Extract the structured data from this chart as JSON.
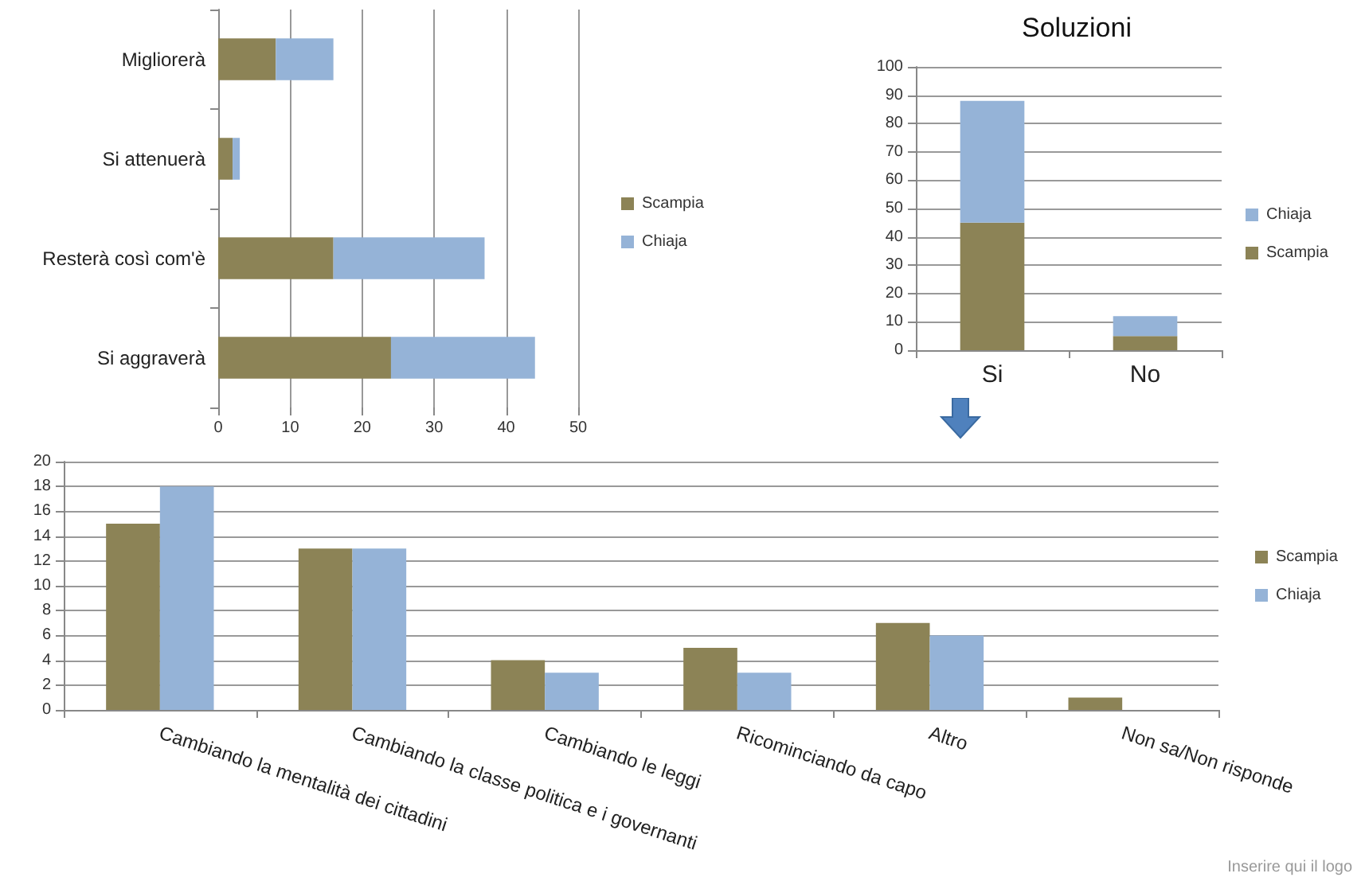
{
  "chart_data": [
    {
      "type": "bar",
      "orientation": "horizontal",
      "stacked": true,
      "categories": [
        "Migliorerà",
        "Si attenuerà",
        "Resterà così com'è",
        "Si aggraverà"
      ],
      "xlim": [
        0,
        50
      ],
      "xticks": [
        0,
        10,
        20,
        30,
        40,
        50
      ],
      "grid": "x",
      "legend": "right",
      "series": [
        {
          "name": "Scampia",
          "color": "#8c8356",
          "values": [
            8,
            2,
            16,
            24
          ]
        },
        {
          "name": "Chiaja",
          "color": "#95b3d7",
          "values": [
            8,
            1,
            21,
            20
          ]
        }
      ]
    },
    {
      "type": "bar",
      "stacked": true,
      "title": "Soluzioni",
      "categories": [
        "Si",
        "No"
      ],
      "ylim": [
        0,
        100
      ],
      "yticks": [
        0,
        10,
        20,
        30,
        40,
        50,
        60,
        70,
        80,
        90,
        100
      ],
      "grid": "y",
      "legend": "right",
      "series": [
        {
          "name": "Scampia",
          "color": "#8c8356",
          "values": [
            45,
            5
          ]
        },
        {
          "name": "Chiaja",
          "color": "#95b3d7",
          "values": [
            43,
            7
          ]
        }
      ]
    },
    {
      "type": "bar",
      "categories": [
        "Cambiando la mentalità dei cittadini",
        "Cambiando la classe politica e i governanti",
        "Cambiando le leggi",
        "Ricominciando da capo",
        "Altro",
        "Non sa/Non risponde"
      ],
      "ylim": [
        0,
        20
      ],
      "yticks": [
        0,
        2,
        4,
        6,
        8,
        10,
        12,
        14,
        16,
        18,
        20
      ],
      "grid": "y",
      "legend": "right",
      "annotations": [
        "Inserire qui il logo"
      ],
      "series": [
        {
          "name": "Scampia",
          "color": "#8c8356",
          "values": [
            15,
            13,
            4,
            5,
            7,
            1
          ]
        },
        {
          "name": "Chiaja",
          "color": "#95b3d7",
          "values": [
            18,
            13,
            3,
            3,
            6,
            0
          ]
        }
      ]
    }
  ]
}
